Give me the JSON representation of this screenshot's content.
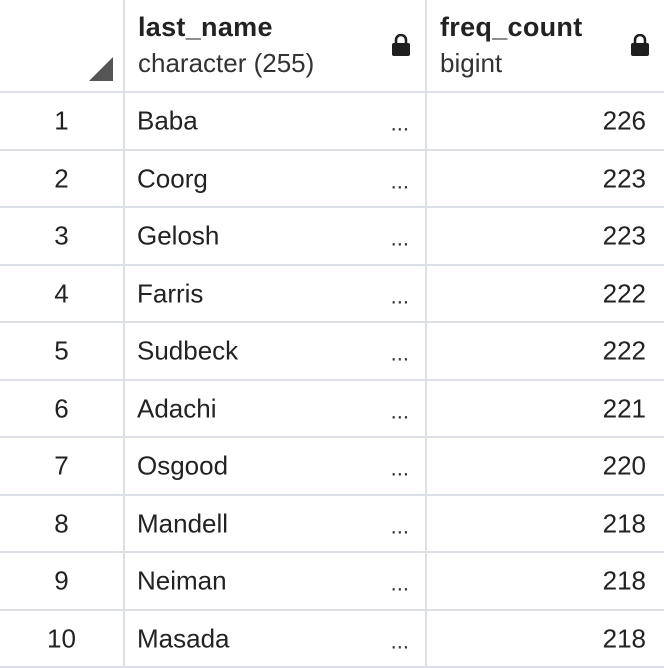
{
  "columns": [
    {
      "name": "last_name",
      "type": "character (255)"
    },
    {
      "name": "freq_count",
      "type": "bigint"
    }
  ],
  "icons": {
    "locked": "lock-icon",
    "corner": "select-all-triangle-icon"
  },
  "ellipsis": "...",
  "rows": [
    {
      "num": "1",
      "last_name": "Baba",
      "freq_count": "226"
    },
    {
      "num": "2",
      "last_name": "Coorg",
      "freq_count": "223"
    },
    {
      "num": "3",
      "last_name": "Gelosh",
      "freq_count": "223"
    },
    {
      "num": "4",
      "last_name": "Farris",
      "freq_count": "222"
    },
    {
      "num": "5",
      "last_name": "Sudbeck",
      "freq_count": "222"
    },
    {
      "num": "6",
      "last_name": "Adachi",
      "freq_count": "221"
    },
    {
      "num": "7",
      "last_name": "Osgood",
      "freq_count": "220"
    },
    {
      "num": "8",
      "last_name": "Mandell",
      "freq_count": "218"
    },
    {
      "num": "9",
      "last_name": "Neiman",
      "freq_count": "218"
    },
    {
      "num": "10",
      "last_name": "Masada",
      "freq_count": "218"
    }
  ]
}
